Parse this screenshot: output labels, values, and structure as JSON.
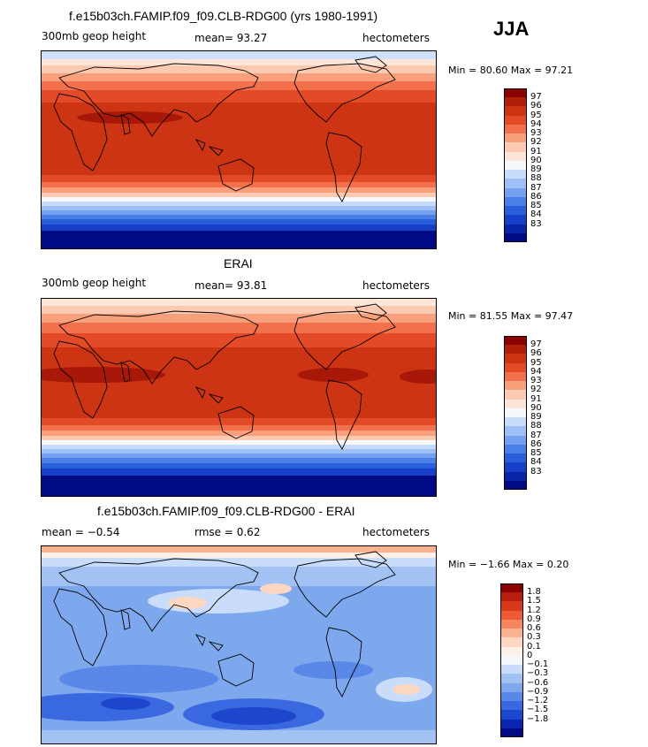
{
  "season": "JJA",
  "panels": [
    {
      "title": "f.e15b03ch.FAMIP.f09_f09.CLB-RDG00 (yrs 1980-1991)",
      "left": "300mb geop height",
      "center": "mean=  93.27",
      "right": "hectometers",
      "minmax": "Min =  80.60 Max =  97.21",
      "kind": "abs",
      "colors": [
        "#8b0000",
        "#b01e0a",
        "#cd3414",
        "#e24a28",
        "#f2704c",
        "#f8a07c",
        "#fccab0",
        "#fde6d8",
        "#f6f9fc",
        "#c7dcfb",
        "#9ec0f6",
        "#74a0f0",
        "#4a7fe8",
        "#2a5fdc",
        "#1640c8",
        "#0a24a8",
        "#000a84"
      ],
      "labels": [
        "97",
        "96",
        "95",
        "94",
        "93",
        "92",
        "91",
        "90",
        "89",
        "88",
        "87",
        "86",
        "85",
        "84",
        "83"
      ]
    },
    {
      "title": "ERAI",
      "left": "300mb geop height",
      "center": "mean=  93.81",
      "right": "hectometers",
      "minmax": "Min =  81.55 Max =  97.47",
      "kind": "abs",
      "colors": [
        "#8b0000",
        "#b01e0a",
        "#cd3414",
        "#e24a28",
        "#f2704c",
        "#f8a07c",
        "#fccab0",
        "#fde6d8",
        "#f6f9fc",
        "#c7dcfb",
        "#9ec0f6",
        "#74a0f0",
        "#4a7fe8",
        "#2a5fdc",
        "#1640c8",
        "#0a24a8",
        "#000a84"
      ],
      "labels": [
        "97",
        "96",
        "95",
        "94",
        "93",
        "92",
        "91",
        "90",
        "89",
        "88",
        "87",
        "86",
        "85",
        "84",
        "83"
      ]
    },
    {
      "title": "f.e15b03ch.FAMIP.f09_f09.CLB-RDG00 - ERAI",
      "left": "mean =   −0.54",
      "center": "rmse =     0.62",
      "right": "hectometers",
      "minmax": "Min =  −1.66 Max =     0.20",
      "kind": "diff",
      "colors": [
        "#8b0000",
        "#b81e0e",
        "#d8391c",
        "#ee5a36",
        "#f6865e",
        "#fab290",
        "#fdd7c2",
        "#fdf0e6",
        "#f4f7fb",
        "#c9dcfa",
        "#a2c2f4",
        "#7ea8ee",
        "#5a88e8",
        "#3a68e0",
        "#1c46cc",
        "#0a26ae",
        "#000a84"
      ],
      "labels": [
        "1.8",
        "1.5",
        "1.2",
        "0.9",
        "0.6",
        "0.3",
        "0.1",
        "0",
        "−0.1",
        "−0.3",
        "−0.6",
        "−0.9",
        "−1.2",
        "−1.5",
        "−1.8"
      ]
    }
  ]
}
